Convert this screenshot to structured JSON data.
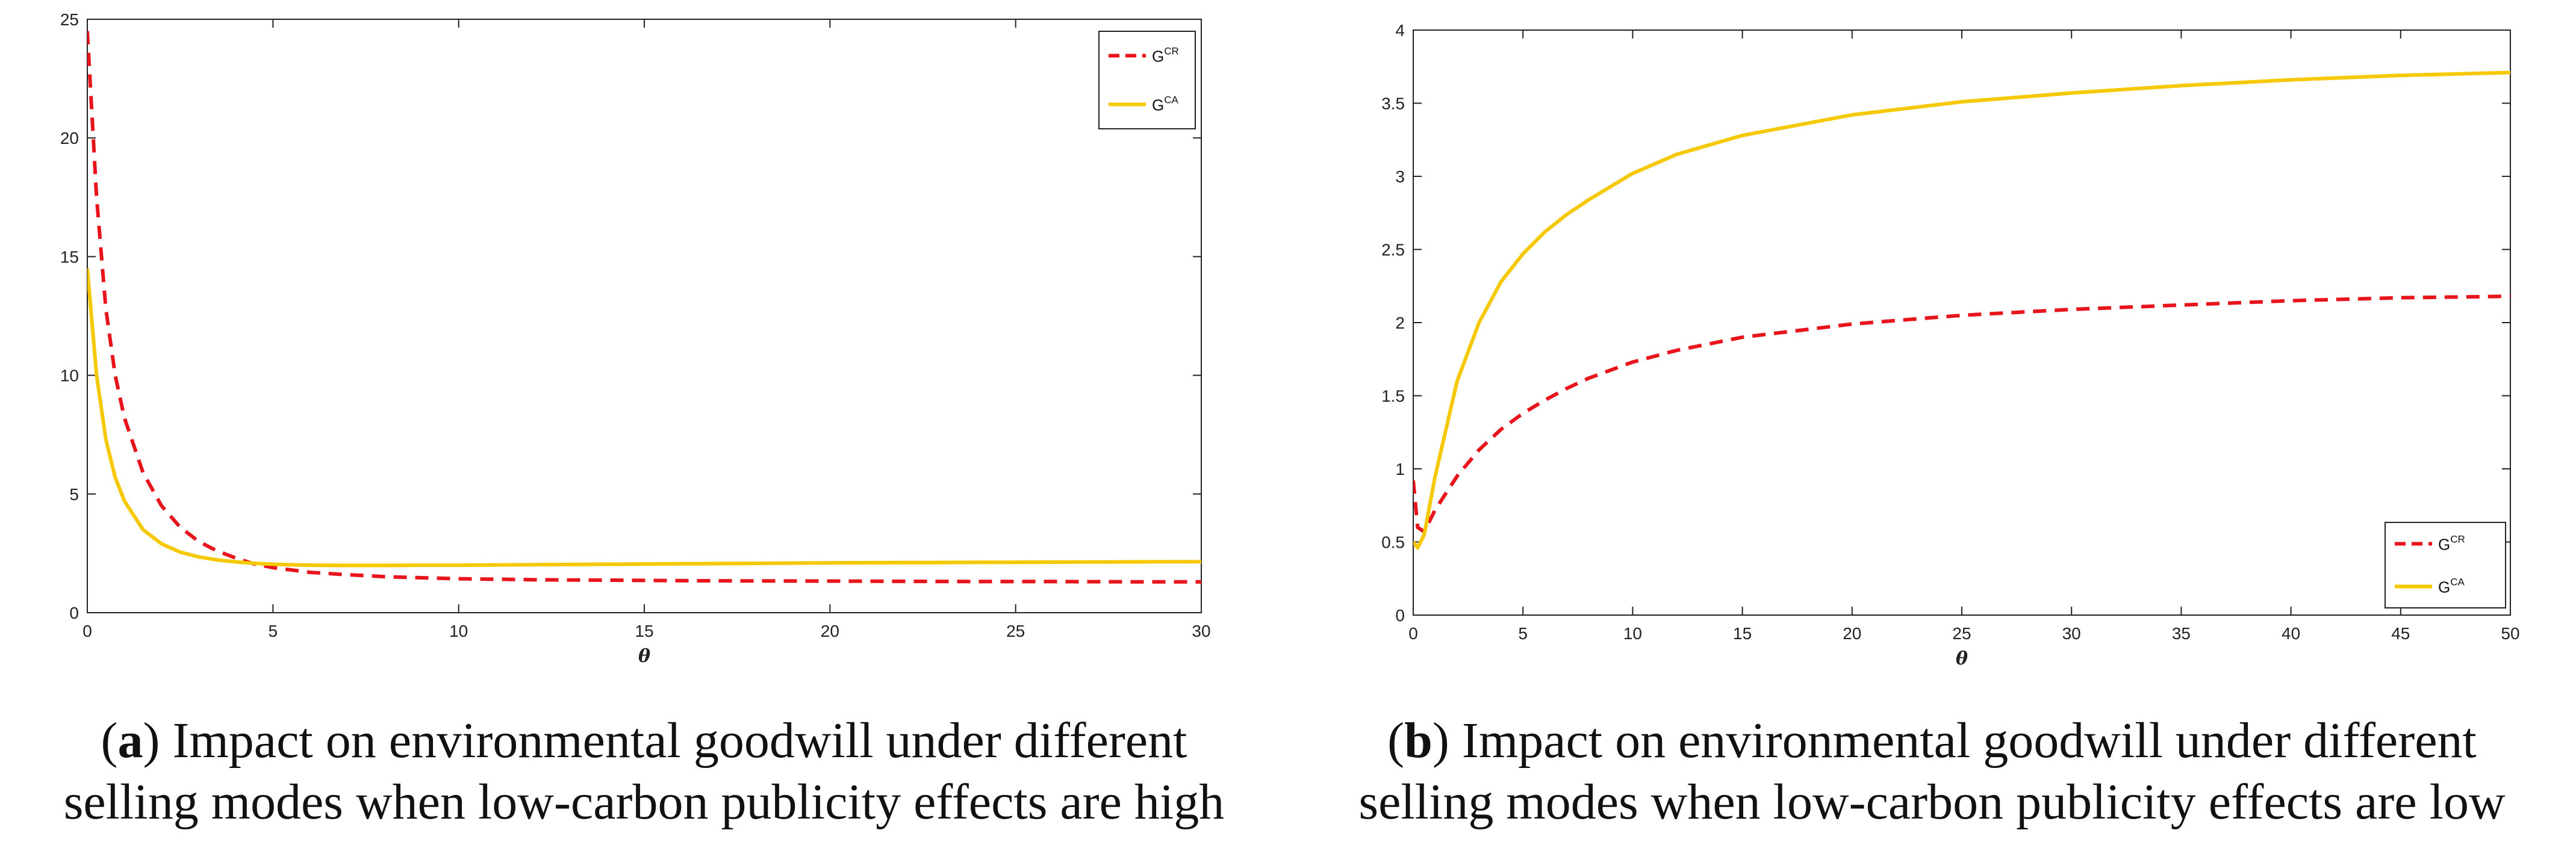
{
  "chart_data": [
    {
      "type": "line",
      "panel": "a",
      "xlabel": "θ",
      "ylabel": "",
      "xlim": [
        0,
        30
      ],
      "ylim": [
        0,
        25
      ],
      "xticks": [
        0,
        5,
        10,
        15,
        20,
        25,
        30
      ],
      "yticks": [
        0,
        5,
        10,
        15,
        20,
        25
      ],
      "grid": false,
      "legend_position": "top-right",
      "series": [
        {
          "name": "G^CR",
          "label_base": "G",
          "label_sup": "CR",
          "color": "#e8141c",
          "dash": "dashed",
          "x": [
            0,
            0.25,
            0.5,
            0.75,
            1,
            1.5,
            2,
            2.5,
            3,
            3.5,
            4,
            4.5,
            5,
            6,
            7,
            8,
            9,
            10,
            12,
            14,
            16,
            18,
            20,
            22,
            24,
            26,
            28,
            30
          ],
          "y": [
            24.5,
            17.5,
            12.8,
            10.0,
            8.2,
            5.9,
            4.5,
            3.6,
            3.0,
            2.6,
            2.3,
            2.05,
            1.9,
            1.7,
            1.6,
            1.52,
            1.47,
            1.43,
            1.39,
            1.37,
            1.35,
            1.34,
            1.33,
            1.32,
            1.31,
            1.31,
            1.3,
            1.3
          ]
        },
        {
          "name": "G^CA",
          "label_base": "G",
          "label_sup": "CA",
          "color": "#f5c800",
          "dash": "solid",
          "x": [
            0,
            0.25,
            0.5,
            0.75,
            1,
            1.5,
            2,
            2.5,
            3,
            3.5,
            4,
            4.5,
            5,
            6,
            7,
            8,
            9,
            10,
            12,
            14,
            16,
            18,
            20,
            22,
            24,
            26,
            28,
            30
          ],
          "y": [
            14.5,
            10.0,
            7.3,
            5.7,
            4.7,
            3.5,
            2.9,
            2.55,
            2.35,
            2.22,
            2.14,
            2.08,
            2.04,
            2.0,
            1.99,
            1.99,
            2.0,
            2.0,
            2.02,
            2.04,
            2.06,
            2.08,
            2.1,
            2.11,
            2.12,
            2.13,
            2.14,
            2.15
          ]
        }
      ]
    },
    {
      "type": "line",
      "panel": "b",
      "xlabel": "θ",
      "ylabel": "",
      "xlim": [
        0,
        50
      ],
      "ylim": [
        0,
        4
      ],
      "xticks": [
        0,
        5,
        10,
        15,
        20,
        25,
        30,
        35,
        40,
        45,
        50
      ],
      "yticks": [
        0,
        0.5,
        1,
        1.5,
        2,
        2.5,
        3,
        3.5,
        4
      ],
      "grid": false,
      "legend_position": "bottom-right",
      "series": [
        {
          "name": "G^CR",
          "label_base": "G",
          "label_sup": "CR",
          "color": "#e8141c",
          "dash": "dashed",
          "x": [
            0,
            0.2,
            0.5,
            1,
            2,
            3,
            4,
            5,
            6,
            7,
            8,
            10,
            12,
            15,
            20,
            25,
            30,
            35,
            40,
            45,
            50
          ],
          "y": [
            0.92,
            0.6,
            0.57,
            0.72,
            0.95,
            1.13,
            1.27,
            1.38,
            1.47,
            1.55,
            1.62,
            1.73,
            1.81,
            1.9,
            1.99,
            2.05,
            2.09,
            2.12,
            2.15,
            2.17,
            2.18
          ]
        },
        {
          "name": "G^CA",
          "label_base": "G",
          "label_sup": "CA",
          "color": "#f5c800",
          "dash": "solid",
          "x": [
            0,
            0.2,
            0.5,
            1,
            2,
            3,
            4,
            5,
            6,
            7,
            8,
            10,
            12,
            15,
            20,
            25,
            30,
            35,
            40,
            45,
            50
          ],
          "y": [
            0.5,
            0.46,
            0.55,
            0.95,
            1.6,
            2.0,
            2.28,
            2.47,
            2.62,
            2.74,
            2.84,
            3.02,
            3.15,
            3.28,
            3.42,
            3.51,
            3.57,
            3.62,
            3.66,
            3.69,
            3.71
          ]
        }
      ]
    }
  ],
  "captions": [
    {
      "letter": "a",
      "line1_rest": ") Impact on environmental goodwill under different",
      "line2": "selling modes when low-carbon publicity effects are high"
    },
    {
      "letter": "b",
      "line1_rest": ") Impact on environmental goodwill under different",
      "line2": "selling modes when low-carbon publicity effects are low"
    }
  ]
}
